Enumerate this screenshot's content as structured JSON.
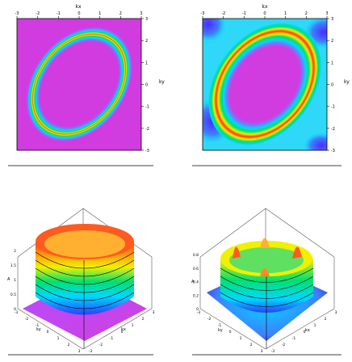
{
  "chart_data": [
    {
      "type": "heatmap",
      "xlabel": "kx",
      "ylabel": "ky",
      "xlim": [
        -3,
        3
      ],
      "ylim": [
        -3,
        3
      ],
      "xticks": [
        -3,
        -2,
        -1,
        0,
        1,
        2,
        3
      ],
      "yticks": [
        3,
        2,
        1,
        0,
        -1,
        -2,
        -3
      ],
      "colormap": [
        "#b000c8",
        "#1f3cff",
        "#00d8ff",
        "#00e070",
        "#f0f000",
        "#ff2a00"
      ],
      "features": {
        "ring_radius": 2.1,
        "ring_orientation_deg": -45,
        "ring_width": 0.18,
        "background_level": 0.0,
        "ring_level": 1.0
      }
    },
    {
      "type": "heatmap",
      "xlabel": "kx",
      "ylabel": "ky",
      "xlim": [
        -3,
        3
      ],
      "ylim": [
        -3,
        3
      ],
      "xticks": [
        -3,
        -2,
        -1,
        0,
        1,
        2,
        3
      ],
      "yticks": [
        3,
        2,
        1,
        0,
        -1,
        -2,
        -3
      ],
      "colormap": [
        "#b000c8",
        "#1f3cff",
        "#00d8ff",
        "#00e070",
        "#f0f000",
        "#ff2a00"
      ],
      "features": {
        "ring_radius": 2.1,
        "ring_orientation_deg": -45,
        "ring_width": 0.45,
        "background_level": 0.4,
        "ring_level": 1.0
      }
    },
    {
      "type": "surface",
      "xlabel": "kx",
      "ylabel": "ky",
      "zlabel": "A",
      "xticks": [
        -3,
        -2,
        -1,
        0,
        1,
        2,
        3
      ],
      "yticks": [
        -3,
        -2,
        -1,
        0,
        1,
        2,
        3
      ],
      "zticks": [
        0,
        0.5,
        1,
        1.5,
        2
      ],
      "zlim": [
        0,
        2
      ]
    },
    {
      "type": "surface",
      "xlabel": "kx",
      "ylabel": "ky",
      "zlabel": "A",
      "xticks": [
        -3,
        -2,
        -1,
        0,
        1,
        2,
        3
      ],
      "yticks": [
        -3,
        -2,
        -1,
        0,
        1,
        2,
        3
      ],
      "zticks": [
        0,
        0.2,
        0.4,
        0.6,
        0.8
      ],
      "zlim": [
        0,
        0.8
      ]
    }
  ]
}
